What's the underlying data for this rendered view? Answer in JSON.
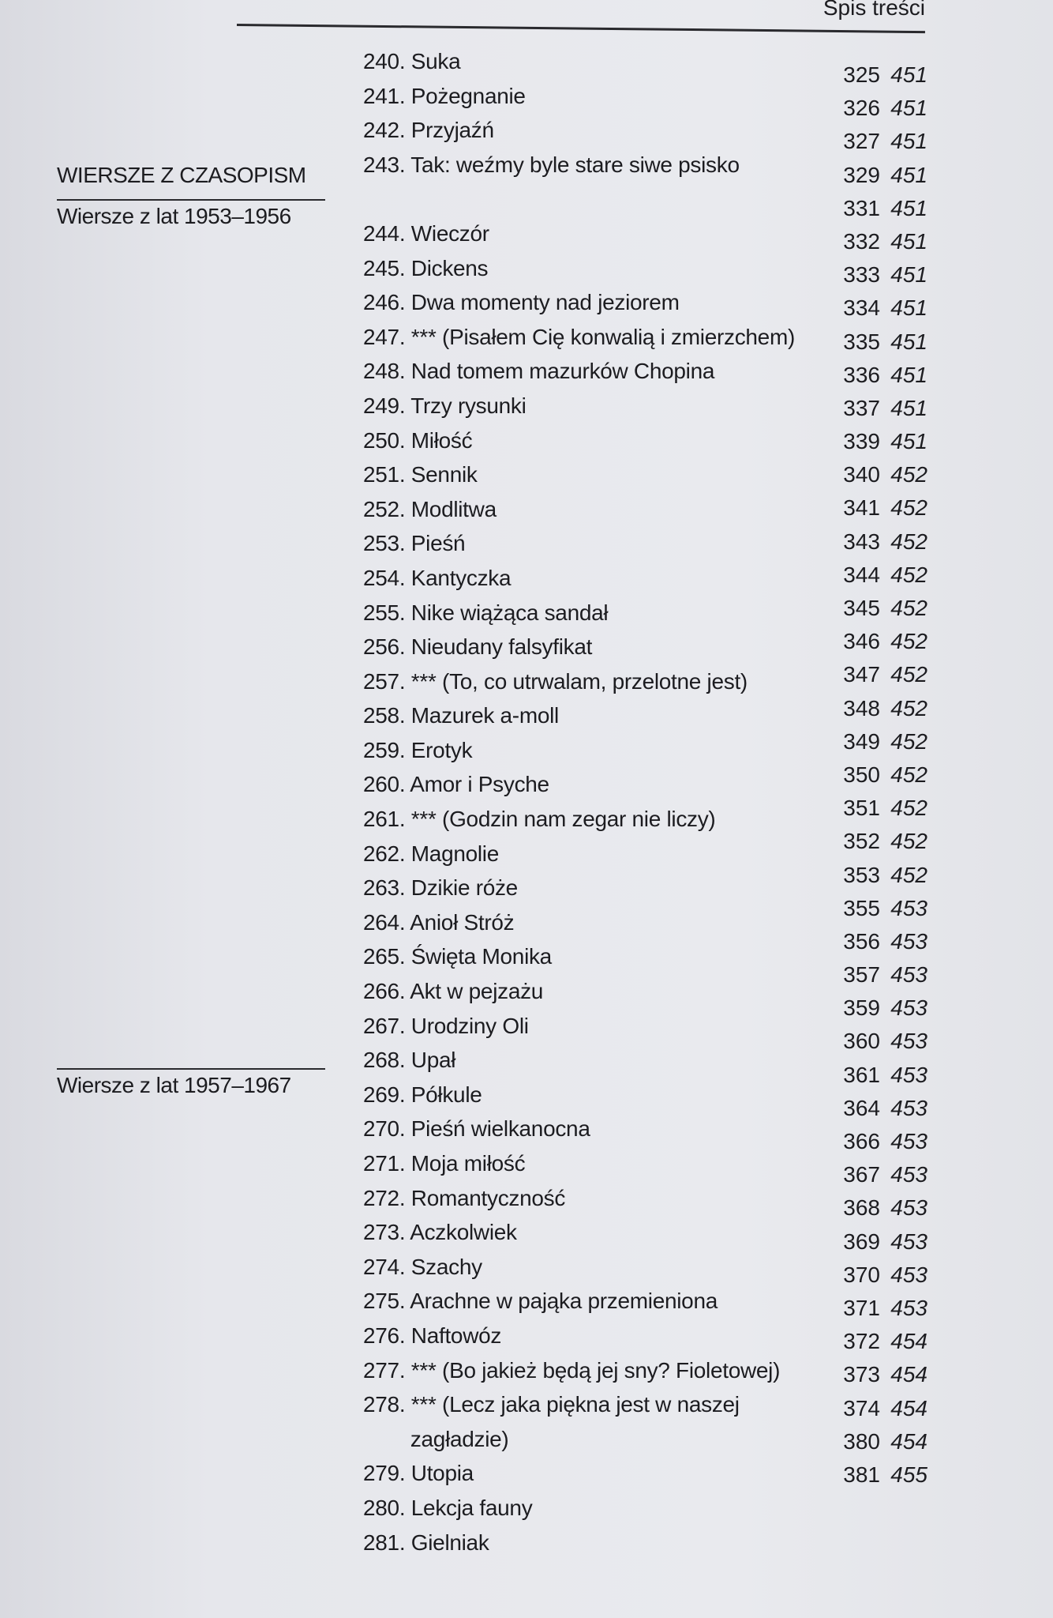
{
  "header": {
    "running_title": "Spis treści"
  },
  "sections": {
    "main": "WIERSZE Z CZASOPISM",
    "sub1": "Wiersze z lat 1953–1956",
    "sub2": "Wiersze z lat 1957–1967"
  },
  "entries": [
    "240. Suka",
    "241. Pożegnanie",
    "242. Przyjaźń",
    "243. Tak: weźmy byle stare siwe psisko",
    "",
    "244. Wieczór",
    "245. Dickens",
    "246. Dwa momenty nad jeziorem",
    "247. *** (Pisałem Cię konwalią i zmierzchem)",
    "248. Nad tomem mazurków Chopina",
    "249. Trzy rysunki",
    "250. Miłość",
    "251. Sennik",
    "252. Modlitwa",
    "253. Pieśń",
    "254. Kantyczka",
    "255. Nike wiążąca sandał",
    "256. Nieudany falsyfikat",
    "257. *** (To, co utrwalam, przelotne jest)",
    "258. Mazurek a-moll",
    "259. Erotyk",
    "260. Amor i Psyche",
    "261. *** (Godzin nam zegar nie liczy)",
    "262. Magnolie",
    "263. Dzikie róże",
    "264. Anioł Stróż",
    "265. Święta Monika",
    "266. Akt w pejzażu",
    "267. Urodziny Oli",
    "268. Upał",
    "269. Półkule",
    "270. Pieśń wielkanocna",
    "271. Moja miłość",
    "272. Romantyczność",
    "273. Aczkolwiek",
    "274. Szachy",
    "275. Arachne w pająka przemieniona",
    "276. Naftowóz",
    "277. *** (Bo jakież będą jej sny? Fioletowej)",
    "278. *** (Lecz jaka piękna jest w naszej",
    "        zagładzie)",
    "279. Utopia",
    "280. Lekcja fauny",
    "281. Gielniak"
  ],
  "page_numbers": [
    [
      "325",
      "451"
    ],
    [
      "326",
      "451"
    ],
    [
      "327",
      "451"
    ],
    [
      "329",
      "451"
    ],
    [
      "331",
      "451"
    ],
    [
      "332",
      "451"
    ],
    [
      "333",
      "451"
    ],
    [
      "334",
      "451"
    ],
    [
      "335",
      "451"
    ],
    [
      "336",
      "451"
    ],
    [
      "337",
      "451"
    ],
    [
      "339",
      "451"
    ],
    [
      "340",
      "452"
    ],
    [
      "341",
      "452"
    ],
    [
      "343",
      "452"
    ],
    [
      "344",
      "452"
    ],
    [
      "345",
      "452"
    ],
    [
      "346",
      "452"
    ],
    [
      "347",
      "452"
    ],
    [
      "348",
      "452"
    ],
    [
      "349",
      "452"
    ],
    [
      "350",
      "452"
    ],
    [
      "351",
      "452"
    ],
    [
      "352",
      "452"
    ],
    [
      "353",
      "452"
    ],
    [
      "355",
      "453"
    ],
    [
      "356",
      "453"
    ],
    [
      "357",
      "453"
    ],
    [
      "359",
      "453"
    ],
    [
      "360",
      "453"
    ],
    [
      "361",
      "453"
    ],
    [
      "364",
      "453"
    ],
    [
      "366",
      "453"
    ],
    [
      "367",
      "453"
    ],
    [
      "368",
      "453"
    ],
    [
      "369",
      "453"
    ],
    [
      "370",
      "453"
    ],
    [
      "371",
      "453"
    ],
    [
      "372",
      "454"
    ],
    [
      "373",
      "454"
    ],
    [
      "374",
      "454"
    ],
    [
      "380",
      "454"
    ],
    [
      "381",
      "455"
    ]
  ]
}
